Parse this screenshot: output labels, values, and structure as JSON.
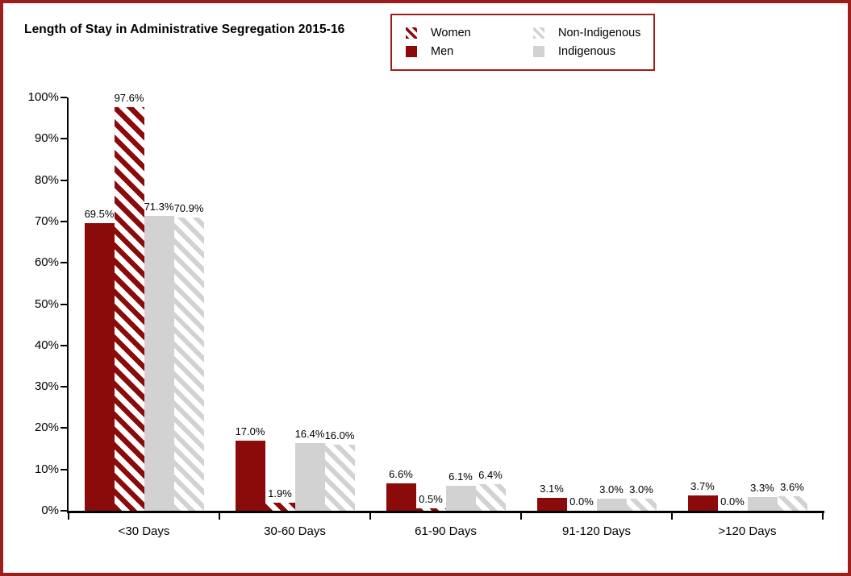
{
  "colors": {
    "dark_red": "#8B0A0A",
    "light_gray": "#D2D2D2",
    "frame_border_red": "#9E1E1E",
    "axis_black": "#000000",
    "background": "#FFFFFF"
  },
  "legend": {
    "items": [
      {
        "label": "Women",
        "style": "striped-red"
      },
      {
        "label": "Non-Indigenous",
        "style": "striped-gray"
      },
      {
        "label": "Men",
        "style": "solid-red"
      },
      {
        "label": "Indigenous",
        "style": "solid-gray"
      }
    ]
  },
  "chart_data": {
    "type": "bar",
    "title": "Length of Stay in Administrative Segregation 2015-16",
    "categories": [
      "<30 Days",
      "30-60 Days",
      "61-90 Days",
      "91-120 Days",
      ">120 Days"
    ],
    "series": [
      {
        "name": "Men",
        "style": "solid-red",
        "color": "#8B0A0A",
        "values": [
          69.5,
          17.0,
          6.6,
          3.1,
          3.7
        ]
      },
      {
        "name": "Women",
        "style": "striped-red",
        "color": "#8B0A0A",
        "values": [
          97.6,
          1.9,
          0.5,
          0.0,
          0.0
        ]
      },
      {
        "name": "Indigenous",
        "style": "solid-gray",
        "color": "#D2D2D2",
        "values": [
          71.3,
          16.4,
          6.1,
          3.0,
          3.3
        ]
      },
      {
        "name": "Non-Indigenous",
        "style": "striped-gray",
        "color": "#D2D2D2",
        "values": [
          70.9,
          16.0,
          6.4,
          3.0,
          3.6
        ]
      }
    ],
    "value_labels_shown": true,
    "value_label_format": "{value:.1f}%",
    "xlabel": "",
    "ylabel": "",
    "ylim": [
      0,
      100
    ],
    "yticks": [
      "0%",
      "10%",
      "20%",
      "30%",
      "40%",
      "50%",
      "60%",
      "70%",
      "80%",
      "90%",
      "100%"
    ],
    "grid": false,
    "legend_position": "top-right"
  }
}
